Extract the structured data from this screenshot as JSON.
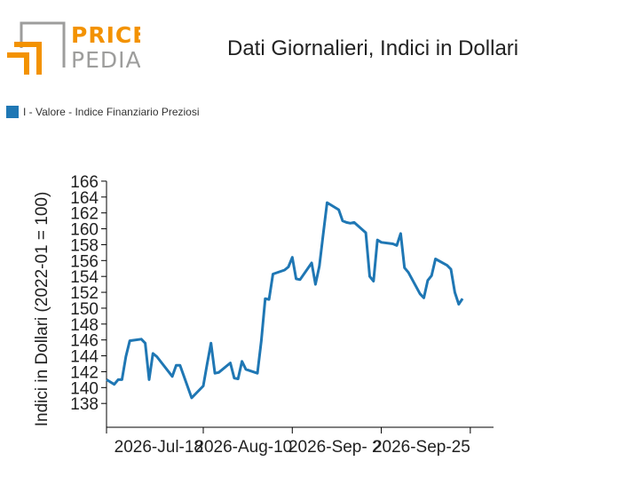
{
  "logo": {
    "word_top": "PRICE",
    "word_bottom": "PEDIA",
    "accent_color": "#f39200",
    "grey_color": "#9d9d9c"
  },
  "title": "Dati Giornalieri, Indici in Dollari",
  "legend": {
    "label": "I - Valore - Indice Finanziario Preziosi",
    "color": "#1f77b4"
  },
  "chart_data": {
    "type": "line",
    "title": "Dati Giornalieri, Indici in Dollari",
    "ylabel": "Indici in Dollari (2022-01 = 100)",
    "xlabel": "",
    "ylim": [
      135,
      167
    ],
    "yticks": [
      138,
      140,
      142,
      144,
      146,
      148,
      150,
      152,
      154,
      156,
      158,
      160,
      162,
      164,
      166
    ],
    "xlim": [
      "2026-06-23",
      "2026-10-01"
    ],
    "xticks": [
      {
        "date": "2026-06-23",
        "label": ""
      },
      {
        "date": "2026-07-18",
        "label": "2026-Jul-18"
      },
      {
        "date": "2026-08-10",
        "label": "2026-Aug-10"
      },
      {
        "date": "2026-09-02",
        "label": "2026-Sep- 2"
      },
      {
        "date": "2026-09-25",
        "label": "2026-Sep-25"
      }
    ],
    "grid": false,
    "legend_position": "top-left",
    "series": [
      {
        "name": "I - Valore - Indice Finanziario Preziosi",
        "color": "#1f77b4",
        "points": [
          [
            "2026-06-23",
            141.0
          ],
          [
            "2026-06-25",
            140.4
          ],
          [
            "2026-06-26",
            141.0
          ],
          [
            "2026-06-27",
            141.0
          ],
          [
            "2026-06-28",
            143.9
          ],
          [
            "2026-06-29",
            145.9
          ],
          [
            "2026-07-02",
            146.1
          ],
          [
            "2026-07-03",
            145.6
          ],
          [
            "2026-07-04",
            141.0
          ],
          [
            "2026-07-05",
            144.3
          ],
          [
            "2026-07-06",
            143.9
          ],
          [
            "2026-07-10",
            141.4
          ],
          [
            "2026-07-11",
            142.8
          ],
          [
            "2026-07-12",
            142.8
          ],
          [
            "2026-07-15",
            138.7
          ],
          [
            "2026-07-18",
            140.2
          ],
          [
            "2026-07-19",
            143.0
          ],
          [
            "2026-07-20",
            145.6
          ],
          [
            "2026-07-21",
            141.8
          ],
          [
            "2026-07-22",
            141.9
          ],
          [
            "2026-07-25",
            143.1
          ],
          [
            "2026-07-26",
            141.2
          ],
          [
            "2026-07-27",
            141.1
          ],
          [
            "2026-07-28",
            143.3
          ],
          [
            "2026-07-29",
            142.3
          ],
          [
            "2026-08-01",
            141.8
          ],
          [
            "2026-08-02",
            145.9
          ],
          [
            "2026-08-03",
            151.2
          ],
          [
            "2026-08-04",
            151.1
          ],
          [
            "2026-08-05",
            154.3
          ],
          [
            "2026-08-08",
            154.8
          ],
          [
            "2026-08-09",
            155.2
          ],
          [
            "2026-08-10",
            156.4
          ],
          [
            "2026-08-11",
            153.7
          ],
          [
            "2026-08-12",
            153.6
          ],
          [
            "2026-08-15",
            155.7
          ],
          [
            "2026-08-16",
            153.0
          ],
          [
            "2026-08-17",
            155.3
          ],
          [
            "2026-08-18",
            159.4
          ],
          [
            "2026-08-19",
            163.3
          ],
          [
            "2026-08-22",
            162.4
          ],
          [
            "2026-08-23",
            161.0
          ],
          [
            "2026-08-24",
            160.8
          ],
          [
            "2026-08-25",
            160.7
          ],
          [
            "2026-08-26",
            160.8
          ],
          [
            "2026-08-29",
            159.5
          ],
          [
            "2026-08-30",
            154.0
          ],
          [
            "2026-08-31",
            153.4
          ],
          [
            "2026-09-01",
            158.6
          ],
          [
            "2026-09-02",
            158.3
          ],
          [
            "2026-09-05",
            158.1
          ],
          [
            "2026-09-06",
            157.9
          ],
          [
            "2026-09-07",
            159.4
          ],
          [
            "2026-09-08",
            155.1
          ],
          [
            "2026-09-09",
            154.5
          ],
          [
            "2026-09-12",
            151.8
          ],
          [
            "2026-09-13",
            151.3
          ],
          [
            "2026-09-14",
            153.5
          ],
          [
            "2026-09-15",
            154.1
          ],
          [
            "2026-09-16",
            156.2
          ],
          [
            "2026-09-19",
            155.4
          ],
          [
            "2026-09-20",
            154.9
          ],
          [
            "2026-09-21",
            152.0
          ],
          [
            "2026-09-22",
            150.5
          ],
          [
            "2026-09-23",
            151.2
          ]
        ]
      }
    ]
  }
}
